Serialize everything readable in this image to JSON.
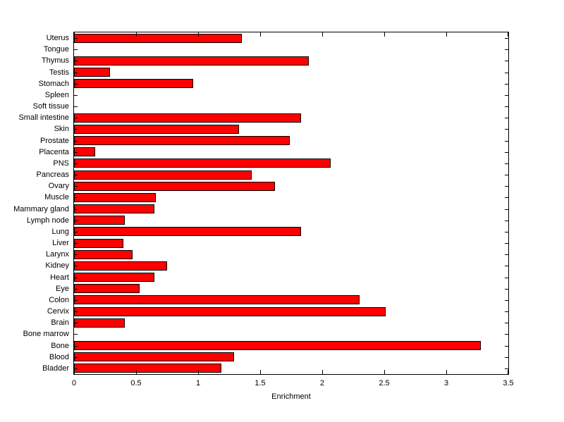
{
  "figure": {
    "background_color": "#ffffff",
    "bar_color": "#ff0000",
    "bar_edge_color": "#000000",
    "axis_color": "#000000",
    "text_color": "#000000"
  },
  "chart_data": {
    "type": "bar",
    "orientation": "horizontal",
    "title": "",
    "xlabel": "Enrichment",
    "ylabel": "",
    "xlim": [
      0,
      3.5
    ],
    "x_ticks": [
      0,
      0.5,
      1,
      1.5,
      2,
      2.5,
      3,
      3.5
    ],
    "x_tick_labels": [
      "0",
      "0.5",
      "1",
      "1.5",
      "2",
      "2.5",
      "3",
      "3.5"
    ],
    "grid": false,
    "legend": null,
    "categories_top_to_bottom": [
      "Uterus",
      "Tongue",
      "Thymus",
      "Testis",
      "Stomach",
      "Spleen",
      "Soft tissue",
      "Small intestine",
      "Skin",
      "Prostate",
      "Placenta",
      "PNS",
      "Pancreas",
      "Ovary",
      "Muscle",
      "Mammary gland",
      "Lymph node",
      "Lung",
      "Liver",
      "Larynx",
      "Kidney",
      "Heart",
      "Eye",
      "Colon",
      "Cervix",
      "Brain",
      "Bone marrow",
      "Bone",
      "Blood",
      "Bladder"
    ],
    "values": [
      1.35,
      0,
      1.89,
      0.29,
      0.96,
      0,
      0,
      1.83,
      1.33,
      1.74,
      0.17,
      2.07,
      1.43,
      1.62,
      0.66,
      0.65,
      0.41,
      1.83,
      0.4,
      0.47,
      0.75,
      0.65,
      0.53,
      2.3,
      2.51,
      0.41,
      0,
      3.28,
      1.29,
      1.19
    ]
  }
}
